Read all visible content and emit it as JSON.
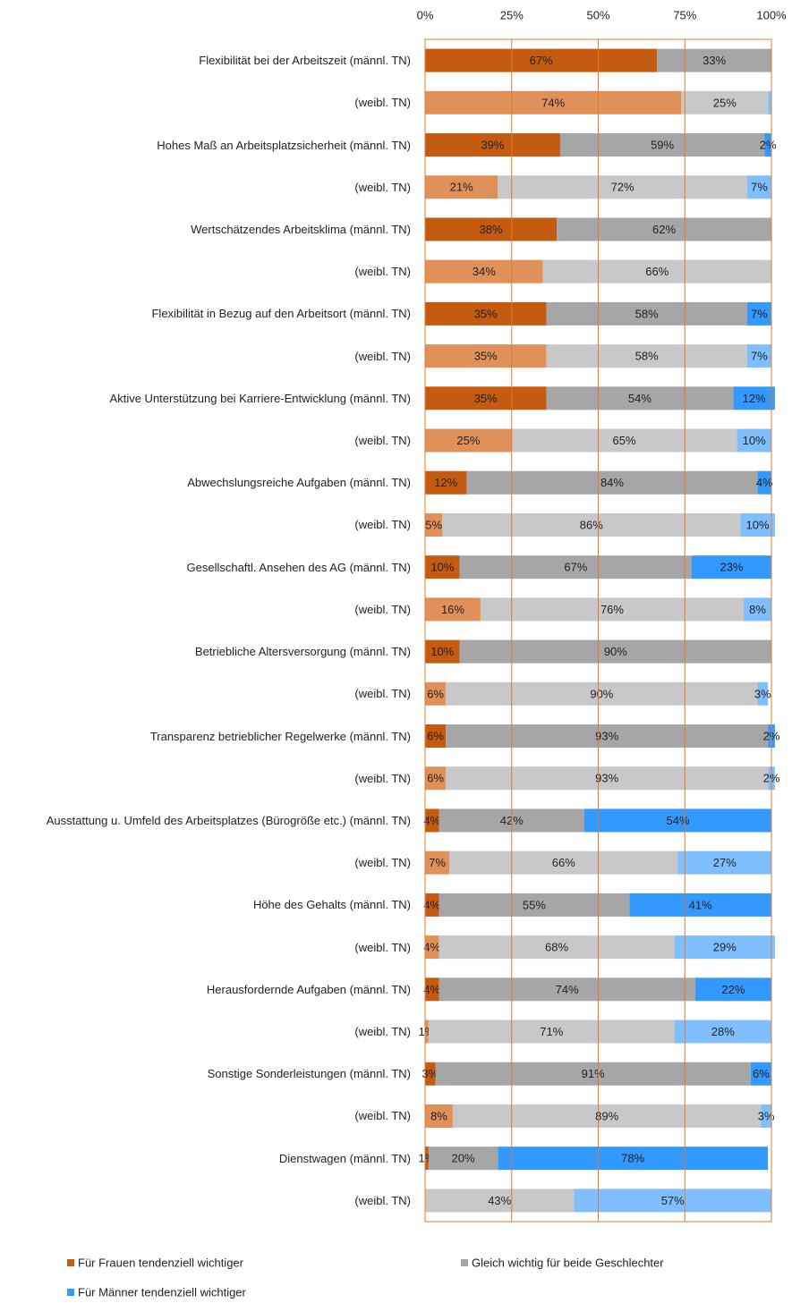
{
  "chart_data": {
    "type": "stacked_barh",
    "categories": [
      "Flexibilität bei der Arbeitszeit (männl. TN)",
      "(weibl. TN)",
      "Hohes Maß an Arbeitsplatzsicherheit (männl. TN)",
      "(weibl. TN)",
      "Wertschätzendes Arbeitsklima (männl. TN)",
      "(weibl. TN)",
      "Flexibilität in Bezug auf den Arbeitsort (männl. TN)",
      "(weibl. TN)",
      "Aktive Unterstützung bei Karriere-Entwicklung (männl. TN)",
      "(weibl. TN)",
      "Abwechslungsreiche Aufgaben (männl. TN)",
      "(weibl. TN)",
      "Gesellschaftl. Ansehen des AG (männl. TN)",
      "(weibl. TN)",
      "Betriebliche Altersversorgung (männl. TN)",
      "(weibl. TN)",
      "Transparenz betrieblicher Regelwerke (männl. TN)",
      "(weibl. TN)",
      "Ausstattung u. Umfeld des Arbeitsplatzes (Bürogröße etc.) (männl. TN)",
      "(weibl. TN)",
      "Höhe des Gehalts (männl. TN)",
      "(weibl. TN)",
      "Herausfordernde Aufgaben (männl. TN)",
      "(weibl. TN)",
      "Sonstige Sonderleistungen (männl. TN)",
      "(weibl. TN)",
      "Dienstwagen (männl. TN)",
      "(weibl. TN)"
    ],
    "series": [
      {
        "name": "Für Frauen tendenziell wichtiger",
        "color": "#c55a11",
        "colors": [
          "#c55a11",
          "#e0915a",
          "#c55a11",
          "#e0915a",
          "#c55a11",
          "#e0915a",
          "#c55a11",
          "#e0915a",
          "#c55a11",
          "#e0915a",
          "#c55a11",
          "#e0915a",
          "#c55a11",
          "#e0915a",
          "#c55a11",
          "#e0915a",
          "#c55a11",
          "#e0915a",
          "#c55a11",
          "#e0915a",
          "#c55a11",
          "#e0915a",
          "#c55a11",
          "#e0915a",
          "#c55a11",
          "#e0915a",
          "#c55a11",
          "#e0915a"
        ],
        "values": [
          67,
          74,
          39,
          21,
          38,
          34,
          35,
          35,
          35,
          25,
          12,
          5,
          10,
          16,
          10,
          6,
          6,
          6,
          4,
          7,
          4,
          4,
          4,
          1,
          3,
          8,
          1,
          0
        ],
        "value_labels": [
          "67%",
          "74%",
          "39%",
          "21%",
          "38%",
          "34%",
          "35%",
          "35%",
          "35%",
          "25%",
          "12%",
          "5%",
          "10%",
          "16%",
          "10%",
          "6%",
          "6%",
          "6%",
          "4%",
          "7%",
          "4%",
          "4%",
          "4%",
          "1%",
          "3%",
          "8%",
          "1%",
          null
        ]
      },
      {
        "name": "Gleich wichtig für beide Geschlechter",
        "color": "#a6a6a6",
        "colors": [
          "#a6a6a6",
          "#c8c8c8",
          "#a6a6a6",
          "#c8c8c8",
          "#a6a6a6",
          "#c8c8c8",
          "#a6a6a6",
          "#c8c8c8",
          "#a6a6a6",
          "#c8c8c8",
          "#a6a6a6",
          "#c8c8c8",
          "#a6a6a6",
          "#c8c8c8",
          "#a6a6a6",
          "#c8c8c8",
          "#a6a6a6",
          "#c8c8c8",
          "#a6a6a6",
          "#c8c8c8",
          "#a6a6a6",
          "#c8c8c8",
          "#a6a6a6",
          "#c8c8c8",
          "#a6a6a6",
          "#c8c8c8",
          "#a6a6a6",
          "#c8c8c8"
        ],
        "values": [
          33,
          25,
          59,
          72,
          62,
          66,
          58,
          58,
          54,
          65,
          84,
          86,
          67,
          76,
          90,
          90,
          93,
          93,
          42,
          66,
          55,
          68,
          74,
          71,
          91,
          89,
          20,
          43
        ],
        "value_labels": [
          "33%",
          "25%",
          "59%",
          "72%",
          "62%",
          "66%",
          "58%",
          "58%",
          "54%",
          "65%",
          "84%",
          "86%",
          "67%",
          "76%",
          "90%",
          "90%",
          "93%",
          "93%",
          "42%",
          "66%",
          "55%",
          "68%",
          "74%",
          "71%",
          "91%",
          "89%",
          "20%",
          "43%"
        ]
      },
      {
        "name": "Für Männer tendenziell wichtiger",
        "color": "#3399ff",
        "colors": [
          "#3399ff",
          "#80bfff",
          "#3399ff",
          "#80bfff",
          "#3399ff",
          "#80bfff",
          "#3399ff",
          "#80bfff",
          "#3399ff",
          "#80bfff",
          "#3399ff",
          "#80bfff",
          "#3399ff",
          "#80bfff",
          "#3399ff",
          "#80bfff",
          "#3399ff",
          "#80bfff",
          "#3399ff",
          "#80bfff",
          "#3399ff",
          "#80bfff",
          "#3399ff",
          "#80bfff",
          "#3399ff",
          "#80bfff",
          "#3399ff",
          "#80bfff"
        ],
        "values": [
          0,
          1,
          2,
          7,
          0,
          0,
          7,
          7,
          12,
          10,
          4,
          10,
          23,
          8,
          0,
          3,
          2,
          2,
          54,
          27,
          41,
          29,
          22,
          28,
          6,
          3,
          78,
          57
        ],
        "value_labels": [
          null,
          null,
          "2%",
          "7%",
          null,
          null,
          "7%",
          "7%",
          "12%",
          "10%",
          "4%",
          "10%",
          "23%",
          "8%",
          null,
          "3%",
          "2%",
          "2%",
          "54%",
          "27%",
          "41%",
          "29%",
          "22%",
          "28%",
          "6%",
          "3%",
          "78%",
          "57%"
        ]
      }
    ],
    "xlim": [
      0,
      100
    ],
    "xticks": [
      {
        "value": 0,
        "label": "0%"
      },
      {
        "value": 25,
        "label": "25%"
      },
      {
        "value": 50,
        "label": "50%"
      },
      {
        "value": 75,
        "label": "75%"
      },
      {
        "value": 100,
        "label": "100%"
      }
    ],
    "grid": true,
    "grid_color": "#e07b2a",
    "legend": "bottom"
  }
}
